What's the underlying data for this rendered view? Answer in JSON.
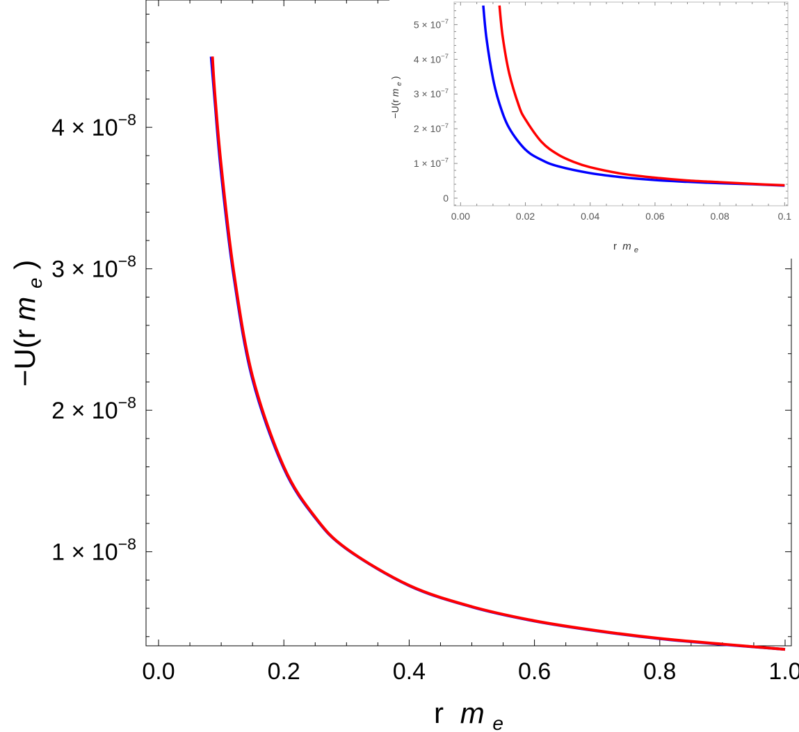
{
  "chart_data": [
    {
      "type": "line",
      "xlabel": "r",
      "xlabel_sub": "m",
      "xlabel_subscript": "e",
      "ylabel": "−U(r ",
      "ylabel_sub": "m",
      "ylabel_subscript": "e",
      "ylabel_close": ")",
      "xlim": [
        -0.02,
        1.01
      ],
      "ylim": [
        3.35e-09,
        4.9e-08
      ],
      "x_ticks": [
        {
          "value": 0.0,
          "label": "0.0"
        },
        {
          "value": 0.2,
          "label": "0.2"
        },
        {
          "value": 0.4,
          "label": "0.4"
        },
        {
          "value": 0.6,
          "label": "0.6"
        },
        {
          "value": 0.8,
          "label": "0.8"
        },
        {
          "value": 1.0,
          "label": "1.0"
        }
      ],
      "y_ticks": [
        {
          "value": 1e-08,
          "mantissa": "1",
          "exponent": "−8"
        },
        {
          "value": 2e-08,
          "mantissa": "2",
          "exponent": "−8"
        },
        {
          "value": 3e-08,
          "mantissa": "3",
          "exponent": "−8"
        },
        {
          "value": 4e-08,
          "mantissa": "4",
          "exponent": "−8"
        }
      ],
      "x_minor_step": 0.05,
      "y_minor_step": 2e-09,
      "grid": false,
      "series": [
        {
          "color": "#0000ff",
          "x": [
            0.084,
            0.09,
            0.1,
            0.12,
            0.15,
            0.2,
            0.25,
            0.3,
            0.4,
            0.5,
            0.6,
            0.7,
            0.8,
            0.9,
            1.0
          ],
          "y": [
            4.5e-08,
            4.18e-08,
            3.68e-08,
            2.95e-08,
            2.22e-08,
            1.59e-08,
            1.24e-08,
            1.02e-08,
            7.6e-09,
            6.1e-09,
            5.1e-09,
            4.4e-09,
            3.85e-09,
            3.45e-09,
            3.1e-09
          ]
        },
        {
          "color": "#ff0000",
          "x": [
            0.086,
            0.09,
            0.1,
            0.12,
            0.15,
            0.2,
            0.25,
            0.3,
            0.4,
            0.5,
            0.6,
            0.7,
            0.8,
            0.9,
            1.0
          ],
          "y": [
            4.5e-08,
            4.23e-08,
            3.73e-08,
            2.98e-08,
            2.24e-08,
            1.6e-08,
            1.245e-08,
            1.022e-08,
            7.62e-09,
            6.12e-09,
            5.12e-09,
            4.42e-09,
            3.87e-09,
            3.47e-09,
            3.1e-09
          ]
        }
      ]
    },
    {
      "type": "line",
      "xlabel": "r",
      "xlabel_sub": "m",
      "xlabel_subscript": "e",
      "ylabel": "−U(r ",
      "ylabel_sub": "m",
      "ylabel_subscript": "e",
      "ylabel_close": ")",
      "xlim": [
        -0.002,
        0.101
      ],
      "ylim": [
        -2.2e-08,
        5.65e-07
      ],
      "x_ticks": [
        {
          "value": 0.0,
          "label": "0.00"
        },
        {
          "value": 0.02,
          "label": "0.02"
        },
        {
          "value": 0.04,
          "label": "0.04"
        },
        {
          "value": 0.06,
          "label": "0.06"
        },
        {
          "value": 0.08,
          "label": "0.08"
        },
        {
          "value": 0.1,
          "label": "0.1"
        }
      ],
      "y_ticks": [
        {
          "value": 0,
          "mantissa": "0",
          "exponent": ""
        },
        {
          "value": 1e-07,
          "mantissa": "1",
          "exponent": "−7"
        },
        {
          "value": 2e-07,
          "mantissa": "2",
          "exponent": "−7"
        },
        {
          "value": 3e-07,
          "mantissa": "3",
          "exponent": "−7"
        },
        {
          "value": 4e-07,
          "mantissa": "4",
          "exponent": "−7"
        },
        {
          "value": 5e-07,
          "mantissa": "5",
          "exponent": "−7"
        }
      ],
      "x_minor_step": 0.005,
      "y_minor_step": 2e-08,
      "grid": false,
      "legend_position": "top-right inset",
      "series": [
        {
          "color": "#0000ff",
          "x": [
            0.007,
            0.008,
            0.01,
            0.012,
            0.015,
            0.02,
            0.025,
            0.03,
            0.04,
            0.05,
            0.06,
            0.07,
            0.08,
            0.09,
            0.1
          ],
          "y": [
            5.55e-07,
            4.6e-07,
            3.45e-07,
            2.72e-07,
            2.02e-07,
            1.4e-07,
            1.1e-07,
            9.2e-08,
            7.2e-08,
            6e-08,
            5.2e-08,
            4.7e-08,
            4.3e-08,
            4e-08,
            3.6e-08
          ]
        },
        {
          "color": "#ff0000",
          "x": [
            0.012,
            0.013,
            0.015,
            0.018,
            0.02,
            0.025,
            0.03,
            0.035,
            0.04,
            0.05,
            0.06,
            0.07,
            0.08,
            0.09,
            0.1
          ],
          "y": [
            5.55e-07,
            4.65e-07,
            3.6e-07,
            2.66e-07,
            2.27e-07,
            1.62e-07,
            1.26e-07,
            1.04e-07,
            8.9e-08,
            7e-08,
            5.9e-08,
            5.1e-08,
            4.6e-08,
            4.1e-08,
            3.7e-08
          ]
        }
      ]
    }
  ]
}
